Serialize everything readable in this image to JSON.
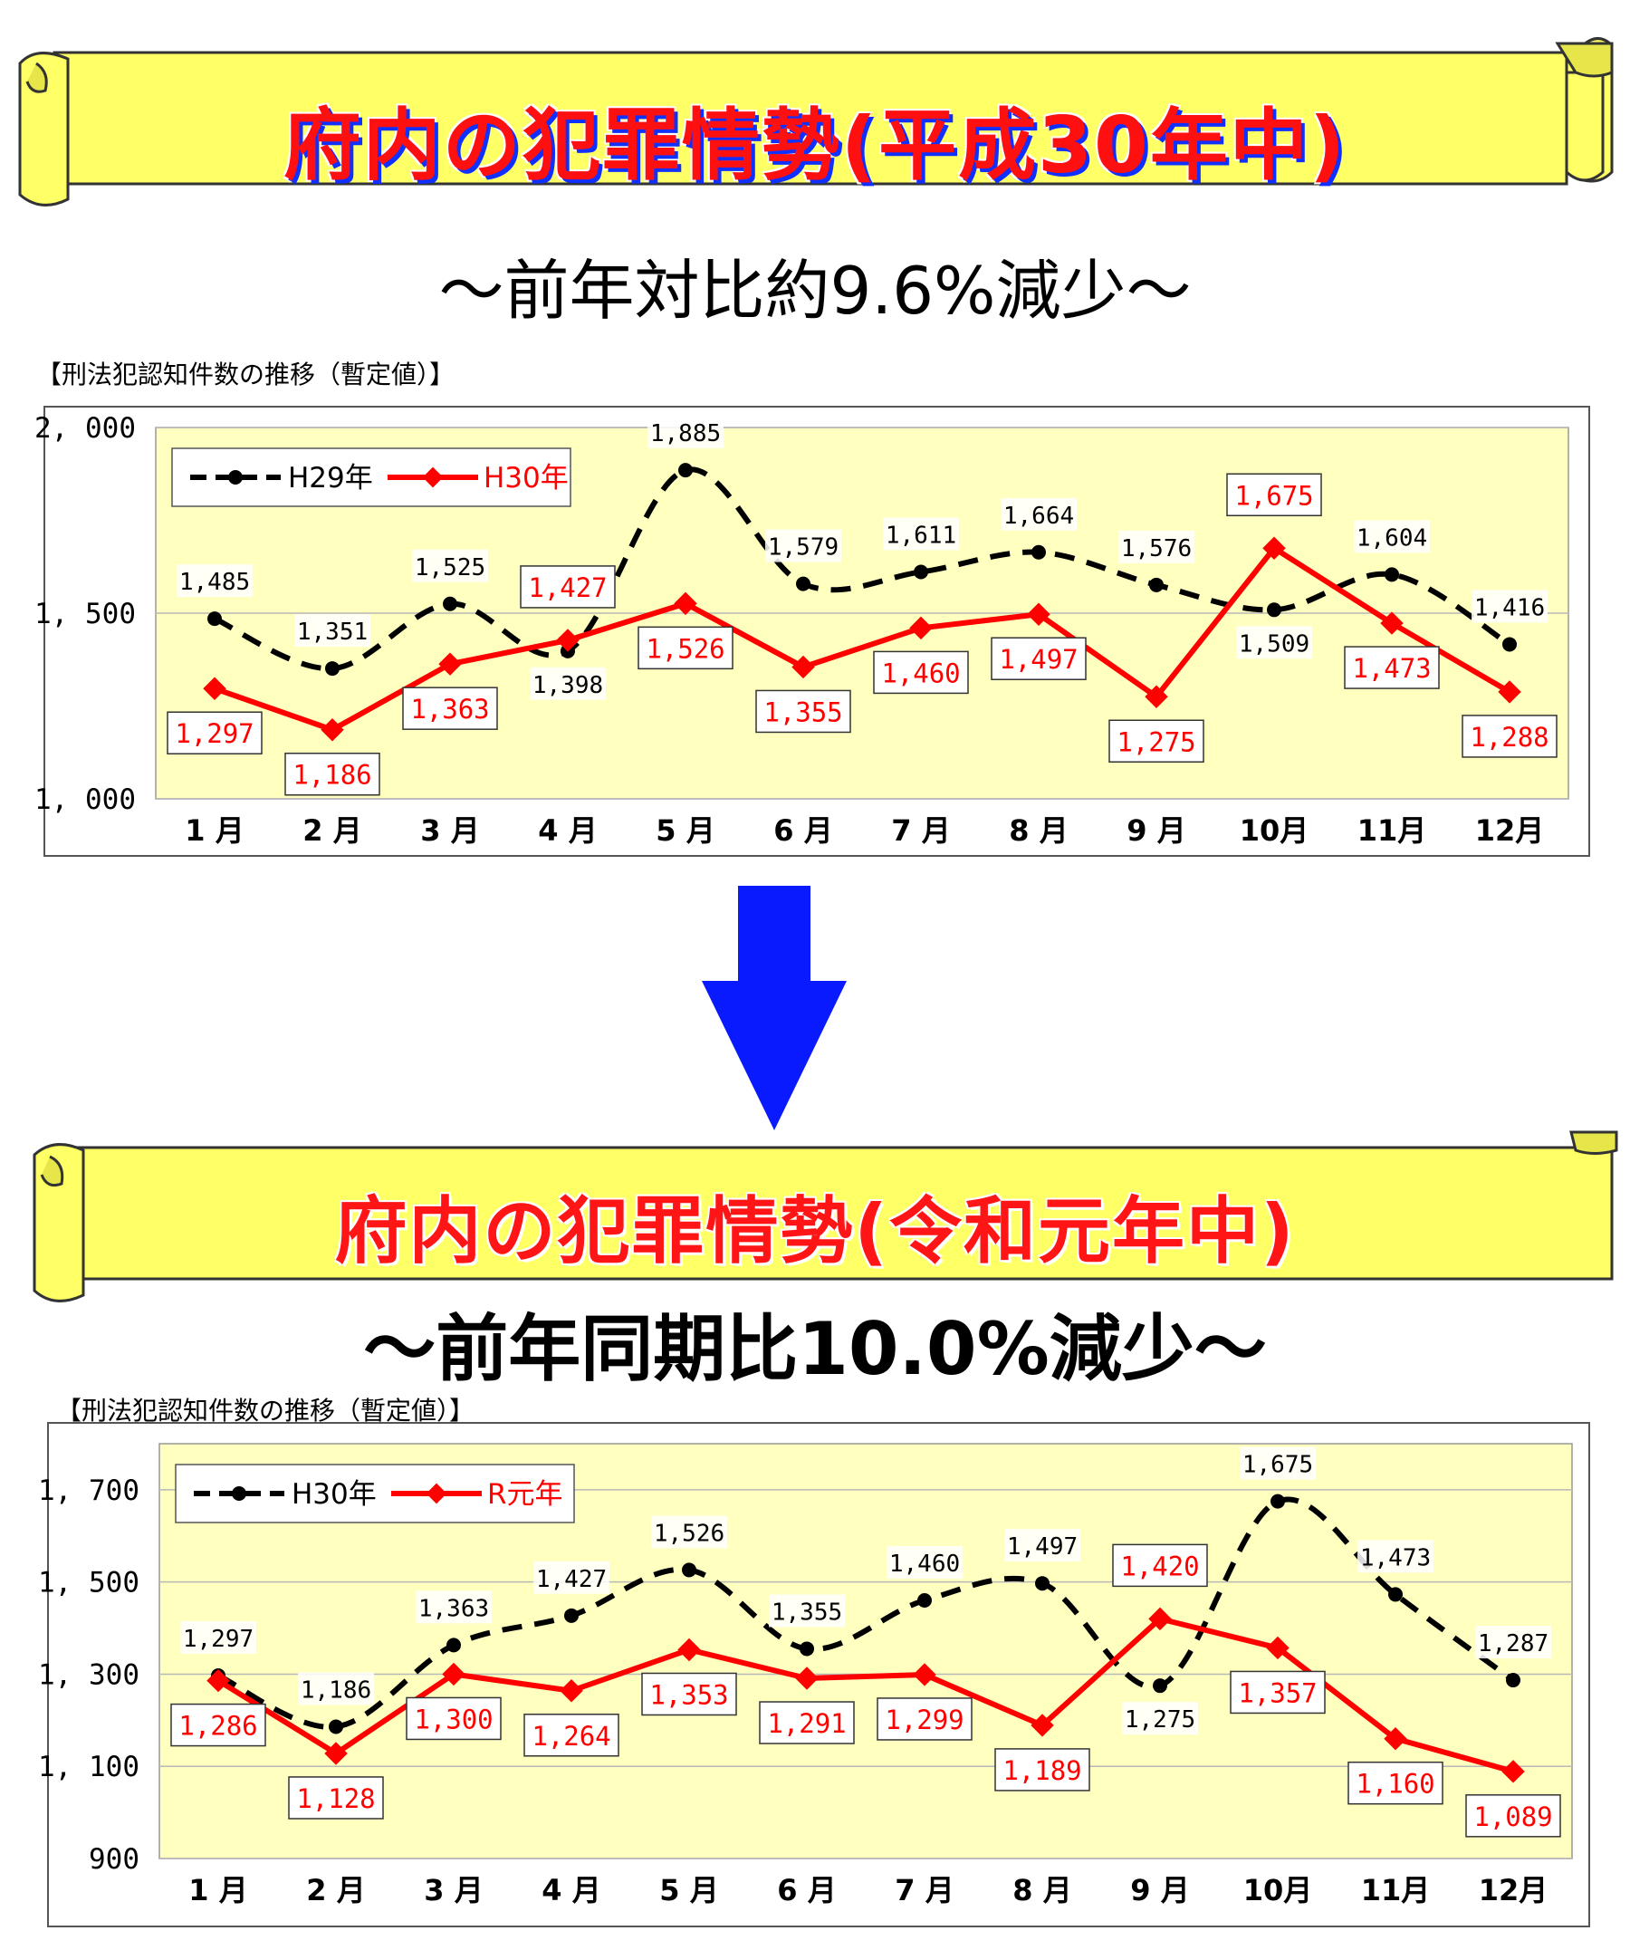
{
  "banner1": {
    "title": "府内の犯罪情勢(平成30年中)"
  },
  "subtitle1": "～前年対比約9.6%減少～",
  "chart1_caption": "【刑法犯認知件数の推移（暫定値）】",
  "banner2": {
    "title": "府内の犯罪情勢(令和元年中)"
  },
  "subtitle2": "～前年同期比10.0%減少～",
  "chart2_caption": "【刑法犯認知件数の推移（暫定値）】",
  "colors": {
    "banner_fill": "#ffff66",
    "plot_bg": "#ffffc0",
    "arrow": "#0a1aff",
    "series_prev": "#000000",
    "series_curr": "#ff0000"
  },
  "chart_data": [
    {
      "type": "line",
      "categories": [
        "1月",
        "2月",
        "3月",
        "4月",
        "5月",
        "6月",
        "7月",
        "8月",
        "9月",
        "10月",
        "11月",
        "12月"
      ],
      "series": [
        {
          "name": "H29年",
          "style": "dashed-black",
          "values": [
            1485,
            1351,
            1525,
            1398,
            1885,
            1579,
            1611,
            1664,
            1576,
            1509,
            1604,
            1416
          ],
          "labels": [
            "1,485",
            "1,351",
            "1,525",
            "1,398",
            "1,885",
            "1,579",
            "1,611",
            "1,664",
            "1,576",
            "1,509",
            "1,604",
            "1,416"
          ]
        },
        {
          "name": "H30年",
          "style": "solid-red",
          "values": [
            1297,
            1186,
            1363,
            1427,
            1526,
            1355,
            1460,
            1497,
            1275,
            1675,
            1473,
            1288
          ],
          "labels": [
            "1,297",
            "1,186",
            "1,363",
            "1,427",
            "1,526",
            "1,355",
            "1,460",
            "1,497",
            "1,275",
            "1,675",
            "1,473",
            "1,288"
          ]
        }
      ],
      "yticks": [
        "1,000",
        "1,500",
        "2,000"
      ],
      "ylim": [
        1000,
        2000
      ],
      "legend": "top-left",
      "grid": true
    },
    {
      "type": "line",
      "categories": [
        "1月",
        "2月",
        "3月",
        "4月",
        "5月",
        "6月",
        "7月",
        "8月",
        "9月",
        "10月",
        "11月",
        "12月"
      ],
      "series": [
        {
          "name": "H30年",
          "style": "dashed-black",
          "values": [
            1297,
            1186,
            1363,
            1427,
            1526,
            1355,
            1460,
            1497,
            1275,
            1675,
            1473,
            1287
          ],
          "labels": [
            "1,297",
            "1,186",
            "1,363",
            "1,427",
            "1,526",
            "1,355",
            "1,460",
            "1,497",
            "1,275",
            "1,675",
            "1,473",
            "1,287"
          ]
        },
        {
          "name": "R元年",
          "style": "solid-red",
          "values": [
            1286,
            1128,
            1300,
            1264,
            1353,
            1291,
            1299,
            1189,
            1420,
            1357,
            1160,
            1089
          ],
          "labels": [
            "1,286",
            "1,128",
            "1,300",
            "1,264",
            "1,353",
            "1,291",
            "1,299",
            "1,189",
            "1,420",
            "1,357",
            "1,160",
            "1,089"
          ]
        }
      ],
      "yticks": [
        "900",
        "1,100",
        "1,300",
        "1,500",
        "1,700"
      ],
      "ylim": [
        900,
        1800
      ],
      "legend": "top-left",
      "grid": true
    }
  ]
}
